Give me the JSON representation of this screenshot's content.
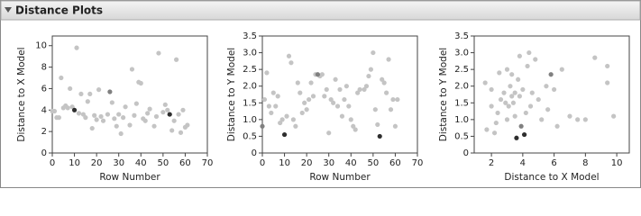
{
  "header": {
    "title": "Distance Plots"
  },
  "chart_data": [
    {
      "type": "scatter",
      "xlabel": "Row Number",
      "ylabel": "Distance to X Model",
      "xlim": [
        0,
        70
      ],
      "ylim": [
        0,
        10.9
      ],
      "xticks": [
        0,
        10,
        20,
        30,
        40,
        50,
        60,
        70
      ],
      "yticks": [
        0,
        2,
        4,
        6,
        8,
        10
      ],
      "series": [
        {
          "color": "#c4c4c4",
          "x": [
            0,
            1,
            2,
            3,
            4,
            5,
            6,
            7,
            8,
            9,
            11,
            12,
            13,
            14,
            15,
            16,
            17,
            18,
            19,
            20,
            21,
            22,
            23,
            25,
            27,
            28,
            29,
            30,
            31,
            32,
            33,
            35,
            36,
            37,
            38,
            39,
            40,
            41,
            42,
            43,
            44,
            46,
            47,
            48,
            50,
            51,
            52,
            54,
            55,
            56,
            57,
            58,
            59,
            60,
            61
          ],
          "values": [
            3.9,
            3.9,
            3.3,
            3.3,
            7.0,
            4.2,
            4.4,
            4.2,
            6.0,
            4.3,
            9.8,
            3.7,
            5.5,
            3.6,
            3.3,
            4.8,
            5.5,
            2.3,
            3.5,
            3.1,
            5.9,
            3.4,
            3.0,
            3.6,
            4.7,
            3.2,
            2.5,
            3.6,
            1.8,
            3.3,
            4.3,
            2.6,
            7.8,
            3.5,
            4.6,
            6.6,
            6.5,
            3.2,
            3.0,
            3.7,
            4.1,
            2.5,
            3.4,
            9.3,
            3.8,
            4.5,
            4.0,
            2.1,
            3.0,
            8.7,
            3.6,
            1.9,
            4.0,
            2.4,
            2.6
          ]
        },
        {
          "color": "#808080",
          "x": [
            26
          ],
          "values": [
            5.7
          ]
        },
        {
          "color": "#2e2e2e",
          "x": [
            10,
            53
          ],
          "values": [
            4.0,
            3.6
          ]
        }
      ]
    },
    {
      "type": "scatter",
      "xlabel": "Row Number",
      "ylabel": "Distance to Y Model",
      "xlim": [
        0,
        70
      ],
      "ylim": [
        0,
        3.5
      ],
      "xticks": [
        0,
        10,
        20,
        30,
        40,
        50,
        60,
        70
      ],
      "yticks": [
        0,
        0.5,
        {
          "value": 1,
          "label": "1.0"
        },
        1.5,
        {
          "value": 2,
          "label": "2.0"
        },
        2.5,
        {
          "value": 3,
          "label": "3.0"
        },
        3.5
      ],
      "series": [
        {
          "color": "#c4c4c4",
          "x": [
            1,
            2,
            3,
            4,
            5,
            6,
            7,
            8,
            9,
            11,
            12,
            13,
            14,
            15,
            16,
            17,
            18,
            19,
            20,
            21,
            22,
            23,
            24,
            26,
            27,
            28,
            29,
            30,
            31,
            32,
            33,
            34,
            35,
            36,
            37,
            38,
            39,
            40,
            41,
            42,
            43,
            44,
            46,
            47,
            48,
            49,
            50,
            51,
            52,
            54,
            55,
            56,
            57,
            58,
            59,
            60,
            61
          ],
          "values": [
            1.6,
            2.4,
            1.4,
            1.2,
            1.8,
            1.4,
            1.7,
            0.9,
            1.0,
            1.1,
            2.9,
            2.7,
            1.0,
            0.8,
            2.1,
            1.8,
            1.2,
            1.5,
            1.3,
            1.6,
            2.1,
            1.7,
            2.35,
            2.3,
            2.35,
            1.7,
            1.9,
            0.6,
            1.6,
            1.5,
            2.2,
            1.4,
            1.9,
            1.1,
            1.6,
            2.0,
            1.4,
            1.0,
            0.8,
            0.7,
            1.8,
            1.9,
            1.9,
            2.0,
            2.3,
            2.5,
            3.0,
            1.3,
            0.85,
            2.2,
            2.1,
            1.8,
            2.8,
            1.3,
            1.6,
            0.8,
            1.6
          ]
        },
        {
          "color": "#808080",
          "x": [
            0,
            25
          ],
          "values": [
            0.8,
            2.35
          ]
        },
        {
          "color": "#2e2e2e",
          "x": [
            10,
            53
          ],
          "values": [
            0.55,
            0.5
          ]
        }
      ]
    },
    {
      "type": "scatter",
      "xlabel": "Distance to X Model",
      "ylabel": "Distance to Y Model",
      "xlim": [
        0.9,
        10.8
      ],
      "ylim": [
        0,
        3.5
      ],
      "xticks": [
        2,
        4,
        6,
        8,
        10
      ],
      "yticks": [
        0,
        0.5,
        {
          "value": 1,
          "label": "1.0"
        },
        1.5,
        {
          "value": 2,
          "label": "2.0"
        },
        2.5,
        {
          "value": 3,
          "label": "3.0"
        },
        3.5
      ],
      "series": [
        {
          "color": "#c4c4c4",
          "x": [
            1.6,
            1.7,
            2.0,
            2.0,
            2.2,
            2.3,
            2.4,
            2.5,
            2.6,
            2.8,
            3.0,
            3.0,
            3.1,
            3.2,
            3.3,
            3.4,
            3.5,
            3.5,
            3.7,
            3.8,
            4.0,
            4.2,
            4.3,
            4.4,
            4.5,
            4.6,
            4.8,
            5.0,
            5.2,
            5.5,
            5.6,
            6.0,
            6.2,
            6.5,
            7.0,
            7.5,
            8.0,
            8.6,
            9.4,
            9.4,
            9.8,
            3.3,
            3.8,
            2.9
          ],
          "values": [
            2.1,
            0.7,
            1.9,
            1.4,
            0.6,
            0.9,
            1.2,
            2.4,
            1.6,
            1.8,
            2.5,
            1.0,
            1.4,
            2.0,
            1.7,
            1.5,
            1.8,
            1.1,
            2.2,
            1.7,
            1.9,
            1.2,
            2.6,
            3.0,
            1.4,
            1.8,
            2.8,
            1.6,
            1.0,
            2.0,
            1.3,
            1.9,
            0.8,
            2.5,
            1.1,
            1.0,
            1.0,
            2.85,
            2.6,
            2.1,
            1.1,
            2.35,
            2.9,
            1.5
          ]
        },
        {
          "color": "#808080",
          "x": [
            3.9,
            5.8
          ],
          "values": [
            0.8,
            2.35
          ]
        },
        {
          "color": "#2e2e2e",
          "x": [
            3.6,
            4.1
          ],
          "values": [
            0.45,
            0.55
          ]
        }
      ]
    }
  ]
}
